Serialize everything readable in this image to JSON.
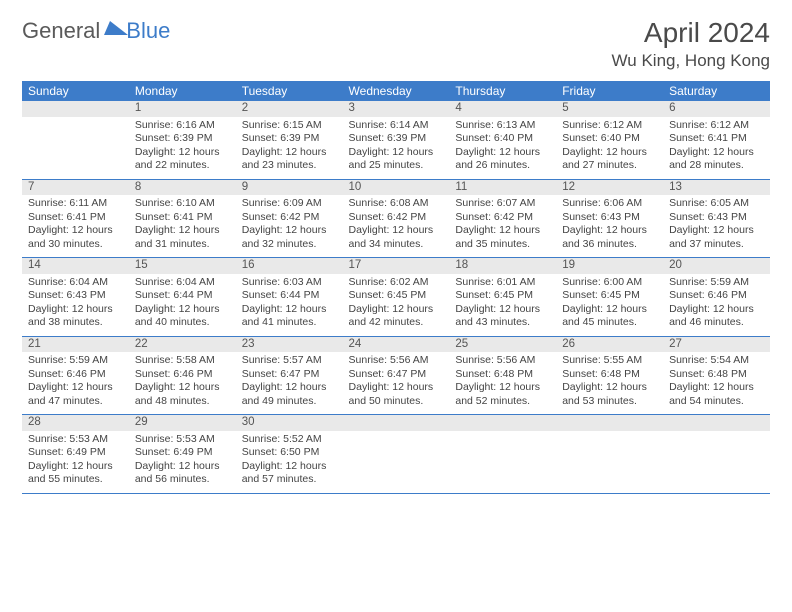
{
  "logo": {
    "part1": "General",
    "part2": "Blue"
  },
  "title": "April 2024",
  "location": "Wu King, Hong Kong",
  "headers": [
    "Sunday",
    "Monday",
    "Tuesday",
    "Wednesday",
    "Thursday",
    "Friday",
    "Saturday"
  ],
  "colors": {
    "accent": "#3d7cc9",
    "header_bg": "#3d7cc9",
    "header_text": "#ffffff",
    "daynum_bg": "#e9e9e9",
    "text": "#444444",
    "bg": "#ffffff"
  },
  "weeks": [
    {
      "nums": [
        "",
        "1",
        "2",
        "3",
        "4",
        "5",
        "6"
      ],
      "cells": [
        {},
        {
          "sunrise": "Sunrise: 6:16 AM",
          "sunset": "Sunset: 6:39 PM",
          "day1": "Daylight: 12 hours",
          "day2": "and 22 minutes."
        },
        {
          "sunrise": "Sunrise: 6:15 AM",
          "sunset": "Sunset: 6:39 PM",
          "day1": "Daylight: 12 hours",
          "day2": "and 23 minutes."
        },
        {
          "sunrise": "Sunrise: 6:14 AM",
          "sunset": "Sunset: 6:39 PM",
          "day1": "Daylight: 12 hours",
          "day2": "and 25 minutes."
        },
        {
          "sunrise": "Sunrise: 6:13 AM",
          "sunset": "Sunset: 6:40 PM",
          "day1": "Daylight: 12 hours",
          "day2": "and 26 minutes."
        },
        {
          "sunrise": "Sunrise: 6:12 AM",
          "sunset": "Sunset: 6:40 PM",
          "day1": "Daylight: 12 hours",
          "day2": "and 27 minutes."
        },
        {
          "sunrise": "Sunrise: 6:12 AM",
          "sunset": "Sunset: 6:41 PM",
          "day1": "Daylight: 12 hours",
          "day2": "and 28 minutes."
        }
      ]
    },
    {
      "nums": [
        "7",
        "8",
        "9",
        "10",
        "11",
        "12",
        "13"
      ],
      "cells": [
        {
          "sunrise": "Sunrise: 6:11 AM",
          "sunset": "Sunset: 6:41 PM",
          "day1": "Daylight: 12 hours",
          "day2": "and 30 minutes."
        },
        {
          "sunrise": "Sunrise: 6:10 AM",
          "sunset": "Sunset: 6:41 PM",
          "day1": "Daylight: 12 hours",
          "day2": "and 31 minutes."
        },
        {
          "sunrise": "Sunrise: 6:09 AM",
          "sunset": "Sunset: 6:42 PM",
          "day1": "Daylight: 12 hours",
          "day2": "and 32 minutes."
        },
        {
          "sunrise": "Sunrise: 6:08 AM",
          "sunset": "Sunset: 6:42 PM",
          "day1": "Daylight: 12 hours",
          "day2": "and 34 minutes."
        },
        {
          "sunrise": "Sunrise: 6:07 AM",
          "sunset": "Sunset: 6:42 PM",
          "day1": "Daylight: 12 hours",
          "day2": "and 35 minutes."
        },
        {
          "sunrise": "Sunrise: 6:06 AM",
          "sunset": "Sunset: 6:43 PM",
          "day1": "Daylight: 12 hours",
          "day2": "and 36 minutes."
        },
        {
          "sunrise": "Sunrise: 6:05 AM",
          "sunset": "Sunset: 6:43 PM",
          "day1": "Daylight: 12 hours",
          "day2": "and 37 minutes."
        }
      ]
    },
    {
      "nums": [
        "14",
        "15",
        "16",
        "17",
        "18",
        "19",
        "20"
      ],
      "cells": [
        {
          "sunrise": "Sunrise: 6:04 AM",
          "sunset": "Sunset: 6:43 PM",
          "day1": "Daylight: 12 hours",
          "day2": "and 38 minutes."
        },
        {
          "sunrise": "Sunrise: 6:04 AM",
          "sunset": "Sunset: 6:44 PM",
          "day1": "Daylight: 12 hours",
          "day2": "and 40 minutes."
        },
        {
          "sunrise": "Sunrise: 6:03 AM",
          "sunset": "Sunset: 6:44 PM",
          "day1": "Daylight: 12 hours",
          "day2": "and 41 minutes."
        },
        {
          "sunrise": "Sunrise: 6:02 AM",
          "sunset": "Sunset: 6:45 PM",
          "day1": "Daylight: 12 hours",
          "day2": "and 42 minutes."
        },
        {
          "sunrise": "Sunrise: 6:01 AM",
          "sunset": "Sunset: 6:45 PM",
          "day1": "Daylight: 12 hours",
          "day2": "and 43 minutes."
        },
        {
          "sunrise": "Sunrise: 6:00 AM",
          "sunset": "Sunset: 6:45 PM",
          "day1": "Daylight: 12 hours",
          "day2": "and 45 minutes."
        },
        {
          "sunrise": "Sunrise: 5:59 AM",
          "sunset": "Sunset: 6:46 PM",
          "day1": "Daylight: 12 hours",
          "day2": "and 46 minutes."
        }
      ]
    },
    {
      "nums": [
        "21",
        "22",
        "23",
        "24",
        "25",
        "26",
        "27"
      ],
      "cells": [
        {
          "sunrise": "Sunrise: 5:59 AM",
          "sunset": "Sunset: 6:46 PM",
          "day1": "Daylight: 12 hours",
          "day2": "and 47 minutes."
        },
        {
          "sunrise": "Sunrise: 5:58 AM",
          "sunset": "Sunset: 6:46 PM",
          "day1": "Daylight: 12 hours",
          "day2": "and 48 minutes."
        },
        {
          "sunrise": "Sunrise: 5:57 AM",
          "sunset": "Sunset: 6:47 PM",
          "day1": "Daylight: 12 hours",
          "day2": "and 49 minutes."
        },
        {
          "sunrise": "Sunrise: 5:56 AM",
          "sunset": "Sunset: 6:47 PM",
          "day1": "Daylight: 12 hours",
          "day2": "and 50 minutes."
        },
        {
          "sunrise": "Sunrise: 5:56 AM",
          "sunset": "Sunset: 6:48 PM",
          "day1": "Daylight: 12 hours",
          "day2": "and 52 minutes."
        },
        {
          "sunrise": "Sunrise: 5:55 AM",
          "sunset": "Sunset: 6:48 PM",
          "day1": "Daylight: 12 hours",
          "day2": "and 53 minutes."
        },
        {
          "sunrise": "Sunrise: 5:54 AM",
          "sunset": "Sunset: 6:48 PM",
          "day1": "Daylight: 12 hours",
          "day2": "and 54 minutes."
        }
      ]
    },
    {
      "nums": [
        "28",
        "29",
        "30",
        "",
        "",
        "",
        ""
      ],
      "cells": [
        {
          "sunrise": "Sunrise: 5:53 AM",
          "sunset": "Sunset: 6:49 PM",
          "day1": "Daylight: 12 hours",
          "day2": "and 55 minutes."
        },
        {
          "sunrise": "Sunrise: 5:53 AM",
          "sunset": "Sunset: 6:49 PM",
          "day1": "Daylight: 12 hours",
          "day2": "and 56 minutes."
        },
        {
          "sunrise": "Sunrise: 5:52 AM",
          "sunset": "Sunset: 6:50 PM",
          "day1": "Daylight: 12 hours",
          "day2": "and 57 minutes."
        },
        {},
        {},
        {},
        {}
      ]
    }
  ]
}
